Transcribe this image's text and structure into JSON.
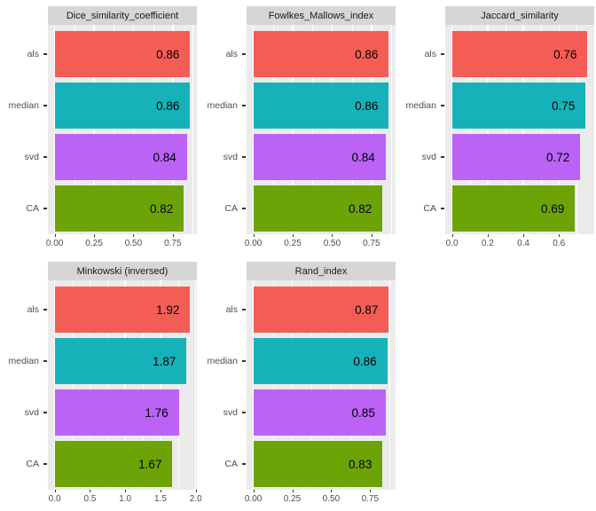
{
  "categories": [
    "als",
    "median",
    "svd",
    "CA"
  ],
  "palette": {
    "als": "#F45D55",
    "median": "#16B2B9",
    "svd": "#BA63F5",
    "CA": "#6CA408"
  },
  "theme": {
    "page_background": "#FFFFFF",
    "panel_background": "#EBEBEB",
    "strip_background": "#D6D6D6",
    "grid_color": "#FFFFFF",
    "tick_color": "#333333",
    "axis_text_color": "#4D4D4D",
    "strip_text_color": "#1A1A1A",
    "value_text_color": "#000000"
  },
  "chart_data": [
    {
      "type": "bar",
      "orientation": "horizontal",
      "title": "Dice_similarity_coefficient",
      "categories": [
        "als",
        "median",
        "svd",
        "CA"
      ],
      "values": [
        0.86,
        0.86,
        0.84,
        0.82
      ],
      "value_labels": [
        "0.86",
        "0.86",
        "0.84",
        "0.82"
      ],
      "xticks": [
        0,
        0.25,
        0.5,
        0.75
      ],
      "xtick_labels": [
        "0.00",
        "0.25",
        "0.50",
        "0.75"
      ],
      "xlim": [
        -0.043,
        0.903
      ],
      "grid": true,
      "legend": "none"
    },
    {
      "type": "bar",
      "orientation": "horizontal",
      "title": "Fowlkes_Mallows_index",
      "categories": [
        "als",
        "median",
        "svd",
        "CA"
      ],
      "values": [
        0.86,
        0.86,
        0.84,
        0.82
      ],
      "value_labels": [
        "0.86",
        "0.86",
        "0.84",
        "0.82"
      ],
      "xticks": [
        0,
        0.25,
        0.5,
        0.75
      ],
      "xtick_labels": [
        "0.00",
        "0.25",
        "0.50",
        "0.75"
      ],
      "xlim": [
        -0.043,
        0.903
      ],
      "grid": true,
      "legend": "none"
    },
    {
      "type": "bar",
      "orientation": "horizontal",
      "title": "Jaccard_similarity",
      "categories": [
        "als",
        "median",
        "svd",
        "CA"
      ],
      "values": [
        0.76,
        0.75,
        0.72,
        0.69
      ],
      "value_labels": [
        "0.76",
        "0.75",
        "0.72",
        "0.69"
      ],
      "xticks": [
        0,
        0.2,
        0.4,
        0.6
      ],
      "xtick_labels": [
        "0.0",
        "0.2",
        "0.4",
        "0.6"
      ],
      "xlim": [
        -0.038,
        0.798
      ],
      "grid": true,
      "legend": "none"
    },
    {
      "type": "bar",
      "orientation": "horizontal",
      "title": "Minkowski (inversed)",
      "categories": [
        "als",
        "median",
        "svd",
        "CA"
      ],
      "values": [
        1.92,
        1.87,
        1.76,
        1.67
      ],
      "value_labels": [
        "1.92",
        "1.87",
        "1.76",
        "1.67"
      ],
      "xticks": [
        0,
        0.5,
        1,
        1.5,
        2
      ],
      "xtick_labels": [
        "0.0",
        "0.5",
        "1.0",
        "1.5",
        "2.0"
      ],
      "xlim": [
        -0.096,
        2.016
      ],
      "grid": true,
      "legend": "none"
    },
    {
      "type": "bar",
      "orientation": "horizontal",
      "title": "Rand_index",
      "categories": [
        "als",
        "median",
        "svd",
        "CA"
      ],
      "values": [
        0.87,
        0.86,
        0.85,
        0.83
      ],
      "value_labels": [
        "0.87",
        "0.86",
        "0.85",
        "0.83"
      ],
      "xticks": [
        0,
        0.25,
        0.5,
        0.75
      ],
      "xtick_labels": [
        "0.00",
        "0.25",
        "0.50",
        "0.75"
      ],
      "xlim": [
        -0.0435,
        0.9135
      ],
      "grid": true,
      "legend": "none"
    }
  ]
}
